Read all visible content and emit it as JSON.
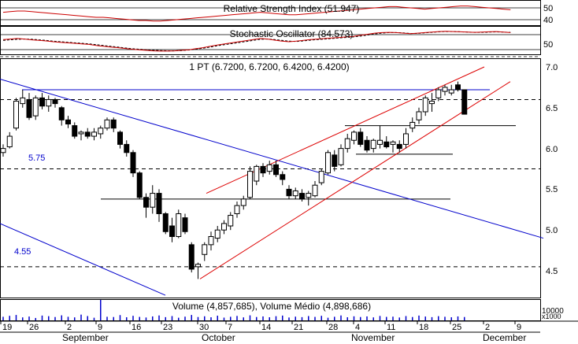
{
  "panels": {
    "rsi": {
      "title": "Relative Strength Index (51.947)",
      "ticks": [
        "50",
        "40"
      ]
    },
    "stochastic": {
      "title": "Stochastic Oscillator (84.573)",
      "ticks": [
        "50"
      ]
    },
    "price": {
      "title": "1 PT (6.7200, 6.7200, 6.4200, 6.4200)",
      "ticks": [
        "7.0",
        "6.5",
        "6.0",
        "5.5",
        "5.0",
        "4.5"
      ],
      "level_labels": [
        "5.75",
        "4.55"
      ]
    },
    "volume": {
      "title": "Volume (4,857,685), Volume Médio (4,898,686)",
      "unit": "x1000",
      "tick_partial": "10000"
    }
  },
  "x_axis": {
    "day_ticks": [
      "19",
      "26",
      "2",
      "9",
      "16",
      "23",
      "30",
      "7",
      "14",
      "21",
      "28",
      "4",
      "11",
      "18",
      "25",
      "2",
      "9"
    ],
    "months": [
      "September",
      "October",
      "November",
      "December"
    ]
  },
  "colors": {
    "up": "#ffffff",
    "down": "#000000",
    "trend_blue": "#0000cc",
    "trend_red": "#dd0000",
    "volume": "#0000cc",
    "rsi_line": "#cc0000",
    "stoch_k": "#cc0000",
    "stoch_d": "#000000"
  },
  "chart_data": {
    "type": "candlestick",
    "title": "1 PT (6.7200, 6.7200, 6.4200, 6.4200)",
    "ylim": [
      4.2,
      7.1
    ],
    "candles": [
      {
        "date": "Sep 18",
        "o": 5.95,
        "h": 6.05,
        "l": 5.9,
        "c": 6.0
      },
      {
        "date": "Sep 19",
        "o": 6.02,
        "h": 6.2,
        "l": 6.0,
        "c": 6.15
      },
      {
        "date": "Sep 20",
        "o": 6.25,
        "h": 6.62,
        "l": 6.22,
        "c": 6.58
      },
      {
        "date": "Sep 21",
        "o": 6.55,
        "h": 6.72,
        "l": 6.5,
        "c": 6.62
      },
      {
        "date": "Sep 22",
        "o": 6.6,
        "h": 6.68,
        "l": 6.35,
        "c": 6.38
      },
      {
        "date": "Sep 25",
        "o": 6.4,
        "h": 6.65,
        "l": 6.35,
        "c": 6.62
      },
      {
        "date": "Sep 26",
        "o": 6.62,
        "h": 6.68,
        "l": 6.48,
        "c": 6.52
      },
      {
        "date": "Sep 27",
        "o": 6.52,
        "h": 6.65,
        "l": 6.45,
        "c": 6.6
      },
      {
        "date": "Sep 28",
        "o": 6.6,
        "h": 6.62,
        "l": 6.5,
        "c": 6.55
      },
      {
        "date": "Sep 29",
        "o": 6.5,
        "h": 6.52,
        "l": 6.28,
        "c": 6.35
      },
      {
        "date": "Oct 02",
        "o": 6.35,
        "h": 6.4,
        "l": 6.25,
        "c": 6.3
      },
      {
        "date": "Oct 03",
        "o": 6.28,
        "h": 6.32,
        "l": 6.12,
        "c": 6.15
      },
      {
        "date": "Oct 04",
        "o": 6.18,
        "h": 6.22,
        "l": 6.1,
        "c": 6.2
      },
      {
        "date": "Oct 05",
        "o": 6.2,
        "h": 6.25,
        "l": 6.12,
        "c": 6.15
      },
      {
        "date": "Oct 06",
        "o": 6.15,
        "h": 6.25,
        "l": 6.1,
        "c": 6.2
      },
      {
        "date": "Oct 09",
        "o": 6.18,
        "h": 6.28,
        "l": 6.12,
        "c": 6.25
      },
      {
        "date": "Oct 10",
        "o": 6.25,
        "h": 6.38,
        "l": 6.22,
        "c": 6.35
      },
      {
        "date": "Oct 11",
        "o": 6.35,
        "h": 6.38,
        "l": 6.2,
        "c": 6.25
      },
      {
        "date": "Oct 12",
        "o": 6.2,
        "h": 6.22,
        "l": 6.0,
        "c": 6.05
      },
      {
        "date": "Oct 13",
        "o": 6.05,
        "h": 6.1,
        "l": 5.9,
        "c": 5.95
      },
      {
        "date": "Oct 16",
        "o": 5.95,
        "h": 5.98,
        "l": 5.65,
        "c": 5.7
      },
      {
        "date": "Oct 17",
        "o": 5.7,
        "h": 5.72,
        "l": 5.38,
        "c": 5.4
      },
      {
        "date": "Oct 18",
        "o": 5.4,
        "h": 5.45,
        "l": 5.15,
        "c": 5.28
      },
      {
        "date": "Oct 19",
        "o": 5.28,
        "h": 5.55,
        "l": 5.2,
        "c": 5.45
      },
      {
        "date": "Oct 20",
        "o": 5.45,
        "h": 5.5,
        "l": 5.1,
        "c": 5.2
      },
      {
        "date": "Oct 23",
        "o": 5.2,
        "h": 5.22,
        "l": 4.95,
        "c": 4.98
      },
      {
        "date": "Oct 24",
        "o": 5.05,
        "h": 5.15,
        "l": 4.85,
        "c": 4.92
      },
      {
        "date": "Oct 25",
        "o": 4.92,
        "h": 5.25,
        "l": 4.9,
        "c": 5.2
      },
      {
        "date": "Oct 26",
        "o": 5.15,
        "h": 5.2,
        "l": 4.95,
        "c": 4.98
      },
      {
        "date": "Oct 27",
        "o": 4.82,
        "h": 4.85,
        "l": 4.48,
        "c": 4.52
      },
      {
        "date": "Oct 30",
        "o": 4.55,
        "h": 4.6,
        "l": 4.4,
        "c": 4.58
      },
      {
        "date": "Oct 31",
        "o": 4.7,
        "h": 4.85,
        "l": 4.62,
        "c": 4.82
      },
      {
        "date": "Nov 01",
        "o": 4.82,
        "h": 4.98,
        "l": 4.75,
        "c": 4.92
      },
      {
        "date": "Nov 02",
        "o": 4.9,
        "h": 5.05,
        "l": 4.85,
        "c": 5.0
      },
      {
        "date": "Nov 03",
        "o": 5.0,
        "h": 5.12,
        "l": 4.95,
        "c": 5.08
      },
      {
        "date": "Nov 06",
        "o": 5.05,
        "h": 5.22,
        "l": 5.0,
        "c": 5.18
      },
      {
        "date": "Nov 07",
        "o": 5.2,
        "h": 5.35,
        "l": 5.15,
        "c": 5.3
      },
      {
        "date": "Nov 08",
        "o": 5.3,
        "h": 5.42,
        "l": 5.25,
        "c": 5.38
      },
      {
        "date": "Nov 09",
        "o": 5.4,
        "h": 5.78,
        "l": 5.38,
        "c": 5.72
      },
      {
        "date": "Nov 10",
        "o": 5.6,
        "h": 5.8,
        "l": 5.55,
        "c": 5.78
      },
      {
        "date": "Nov 13",
        "o": 5.78,
        "h": 5.82,
        "l": 5.65,
        "c": 5.7
      },
      {
        "date": "Nov 14",
        "o": 5.72,
        "h": 5.85,
        "l": 5.68,
        "c": 5.8
      },
      {
        "date": "Nov 15",
        "o": 5.8,
        "h": 5.85,
        "l": 5.65,
        "c": 5.68
      },
      {
        "date": "Nov 16",
        "o": 5.68,
        "h": 5.72,
        "l": 5.55,
        "c": 5.62
      },
      {
        "date": "Nov 17",
        "o": 5.5,
        "h": 5.55,
        "l": 5.38,
        "c": 5.42
      },
      {
        "date": "Nov 20",
        "o": 5.42,
        "h": 5.52,
        "l": 5.38,
        "c": 5.48
      },
      {
        "date": "Nov 21",
        "o": 5.45,
        "h": 5.5,
        "l": 5.35,
        "c": 5.38
      },
      {
        "date": "Nov 22",
        "o": 5.4,
        "h": 5.48,
        "l": 5.3,
        "c": 5.45
      },
      {
        "date": "Nov 23",
        "o": 5.42,
        "h": 5.6,
        "l": 5.4,
        "c": 5.55
      },
      {
        "date": "Nov 24",
        "o": 5.58,
        "h": 5.75,
        "l": 5.55,
        "c": 5.72
      },
      {
        "date": "Nov 27",
        "o": 5.7,
        "h": 5.98,
        "l": 5.68,
        "c": 5.95
      },
      {
        "date": "Nov 28",
        "o": 5.92,
        "h": 5.98,
        "l": 5.72,
        "c": 5.78
      },
      {
        "date": "Nov 29",
        "o": 5.8,
        "h": 6.05,
        "l": 5.78,
        "c": 6.0
      },
      {
        "date": "Nov 30",
        "o": 6.0,
        "h": 6.18,
        "l": 5.95,
        "c": 6.12
      },
      {
        "date": "Dec 01",
        "o": 6.1,
        "h": 6.22,
        "l": 6.05,
        "c": 6.2
      },
      {
        "date": "Dec 04",
        "o": 6.2,
        "h": 6.25,
        "l": 6.02,
        "c": 6.05
      },
      {
        "date": "Dec 05",
        "o": 6.1,
        "h": 6.15,
        "l": 5.95,
        "c": 5.98
      },
      {
        "date": "Dec 06",
        "o": 6.0,
        "h": 6.12,
        "l": 5.95,
        "c": 6.1
      },
      {
        "date": "Dec 07",
        "o": 6.05,
        "h": 6.28,
        "l": 6.0,
        "c": 6.1
      },
      {
        "date": "Dec 08",
        "o": 6.08,
        "h": 6.15,
        "l": 6.0,
        "c": 6.02
      },
      {
        "date": "Dec 11",
        "o": 6.05,
        "h": 6.1,
        "l": 5.95,
        "c": 6.08
      },
      {
        "date": "Dec 12",
        "o": 6.05,
        "h": 6.1,
        "l": 5.95,
        "c": 6.0
      },
      {
        "date": "Dec 13",
        "o": 6.05,
        "h": 6.25,
        "l": 6.0,
        "c": 6.18
      },
      {
        "date": "Dec 14",
        "o": 6.25,
        "h": 6.38,
        "l": 6.2,
        "c": 6.32
      },
      {
        "date": "Dec 15",
        "o": 6.35,
        "h": 6.5,
        "l": 6.3,
        "c": 6.45
      },
      {
        "date": "Dec 18",
        "o": 6.45,
        "h": 6.65,
        "l": 6.4,
        "c": 6.62
      },
      {
        "date": "Dec 19",
        "o": 6.55,
        "h": 6.68,
        "l": 6.45,
        "c": 6.58
      },
      {
        "date": "Dec 20",
        "o": 6.62,
        "h": 6.75,
        "l": 6.58,
        "c": 6.72
      },
      {
        "date": "Dec 21",
        "o": 6.7,
        "h": 6.78,
        "l": 6.65,
        "c": 6.75
      },
      {
        "date": "Dec 22",
        "o": 6.68,
        "h": 6.78,
        "l": 6.65,
        "c": 6.72
      },
      {
        "date": "Dec 25",
        "o": 6.78,
        "h": 6.82,
        "l": 6.7,
        "c": 6.72
      },
      {
        "date": "Dec 26",
        "o": 6.72,
        "h": 6.72,
        "l": 6.42,
        "c": 6.42
      }
    ],
    "horizontal_levels": [
      {
        "value": 6.72,
        "color": "blue",
        "style": "solid"
      },
      {
        "value": 6.6,
        "style": "dashed"
      },
      {
        "value": 6.28,
        "style": "solid"
      },
      {
        "value": 5.93,
        "style": "solid"
      },
      {
        "value": 5.75,
        "style": "dashed"
      },
      {
        "value": 5.38,
        "style": "solid"
      },
      {
        "value": 4.55,
        "style": "dashed"
      }
    ],
    "trendlines": [
      {
        "color": "blue",
        "from": [
          0,
          6.85
        ],
        "to": [
          690,
          4.9
        ]
      },
      {
        "color": "blue",
        "from": [
          0,
          5.08
        ],
        "to": [
          210,
          4.2
        ]
      },
      {
        "color": "red",
        "from": [
          262,
          5.45
        ],
        "to": [
          615,
          7.0
        ]
      },
      {
        "color": "red",
        "from": [
          254,
          4.4
        ],
        "to": [
          648,
          6.82
        ]
      }
    ],
    "volume": [
      30,
      38,
      45,
      25,
      32,
      20,
      40,
      35,
      28,
      42,
      30,
      25,
      48,
      36,
      22,
      170,
      30,
      28,
      44,
      26,
      38,
      29,
      24,
      33,
      41,
      27,
      36,
      22,
      31,
      45,
      28,
      34,
      26,
      39,
      23,
      30,
      37,
      25,
      42,
      28,
      33,
      26,
      35,
      40,
      24,
      31,
      27,
      36,
      29,
      38,
      22,
      30,
      41,
      26,
      34,
      28,
      33,
      25,
      37,
      29,
      31,
      24,
      36,
      28,
      40,
      32,
      27,
      35,
      30,
      26,
      33,
      28
    ],
    "rsi": [
      48,
      49,
      50,
      50,
      49,
      48,
      47,
      46,
      45,
      44,
      43,
      42,
      41,
      40,
      40,
      39,
      38,
      37,
      36,
      35,
      35,
      34,
      34,
      35,
      36,
      37,
      38,
      39,
      40,
      41,
      42,
      43,
      44,
      45,
      46,
      47,
      48,
      47,
      46,
      45,
      44,
      44,
      45,
      46,
      47,
      48,
      49,
      50,
      51,
      52,
      53,
      54,
      55,
      56,
      57,
      57,
      56,
      55,
      54,
      53,
      54,
      55,
      56,
      57,
      58,
      58,
      57,
      56,
      55,
      54,
      53,
      52
    ],
    "stochastic_k": [
      58,
      60,
      62,
      60,
      57,
      55,
      53,
      50,
      48,
      46,
      44,
      42,
      40,
      36,
      33,
      30,
      28,
      25,
      22,
      20,
      18,
      16,
      15,
      15,
      16,
      18,
      20,
      24,
      28,
      33,
      38,
      42,
      46,
      50,
      54,
      58,
      62,
      60,
      56,
      52,
      50,
      52,
      55,
      58,
      60,
      62,
      64,
      66,
      68,
      70,
      74,
      78,
      82,
      84,
      85,
      84,
      82,
      80,
      82,
      84,
      86,
      88,
      89,
      88,
      87,
      86,
      85,
      86,
      87,
      88,
      86,
      84
    ],
    "stochastic_d": [
      55,
      57,
      59,
      60,
      59,
      57,
      55,
      52,
      50,
      48,
      46,
      44,
      42,
      39,
      36,
      33,
      30,
      27,
      24,
      22,
      20,
      18,
      17,
      16,
      16,
      17,
      19,
      22,
      26,
      30,
      35,
      39,
      43,
      47,
      51,
      55,
      59,
      60,
      58,
      55,
      52,
      51,
      53,
      56,
      58,
      60,
      62,
      64,
      66,
      68,
      71,
      75,
      79,
      82,
      84,
      84,
      83,
      81,
      81,
      83,
      85,
      87,
      88,
      88,
      87,
      86,
      85,
      85,
      86,
      87,
      86,
      85
    ]
  }
}
